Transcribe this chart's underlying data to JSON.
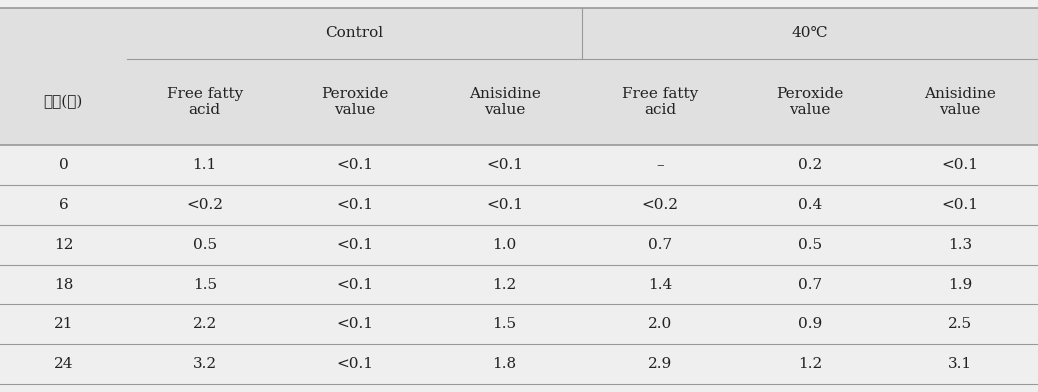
{
  "col_header_row2": [
    "시간(주)",
    "Free fatty\nacid",
    "Peroxide\nvalue",
    "Anisidine\nvalue",
    "Free fatty\nacid",
    "Peroxide\nvalue",
    "Anisidine\nvalue"
  ],
  "rows": [
    [
      "0",
      "1.1",
      "<0.1",
      "<0.1",
      "–",
      "0.2",
      "<0.1"
    ],
    [
      "6",
      "<0.2",
      "<0.1",
      "<0.1",
      "<0.2",
      "0.4",
      "<0.1"
    ],
    [
      "12",
      "0.5",
      "<0.1",
      "1.0",
      "0.7",
      "0.5",
      "1.3"
    ],
    [
      "18",
      "1.5",
      "<0.1",
      "1.2",
      "1.4",
      "0.7",
      "1.9"
    ],
    [
      "21",
      "2.2",
      "<0.1",
      "1.5",
      "2.0",
      "0.9",
      "2.5"
    ],
    [
      "24",
      "3.2",
      "<0.1",
      "1.8",
      "2.9",
      "1.2",
      "3.1"
    ]
  ],
  "background_color": "#efefef",
  "header_bg_color": "#e0e0e0",
  "line_color": "#999999",
  "text_color": "#222222",
  "font_size": 11,
  "header_font_size": 11,
  "control_label": "Control",
  "temp_label": "40℃"
}
